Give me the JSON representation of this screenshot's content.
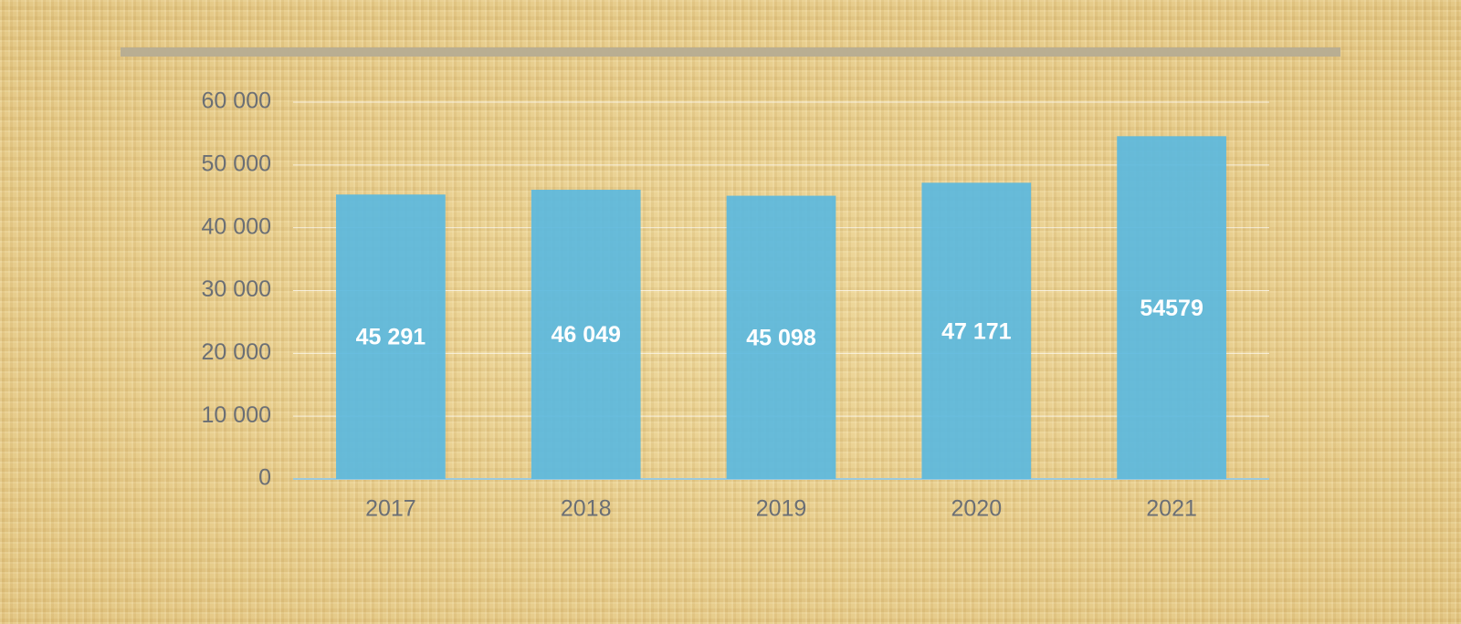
{
  "chart_data": {
    "type": "bar",
    "categories": [
      "2017",
      "2018",
      "2019",
      "2020",
      "2021"
    ],
    "values": [
      45291,
      46049,
      45098,
      47171,
      54579
    ],
    "value_labels": [
      "45 291",
      "46 049",
      "45 098",
      "47 171",
      "54579"
    ],
    "color": "#5bb9de",
    "ylim": [
      0,
      60000
    ],
    "yticks": [
      0,
      {
        "value": 10000,
        "label": "10 000"
      },
      {
        "value": 20000,
        "label": "20 000"
      },
      {
        "value": 30000,
        "label": "30 000"
      },
      {
        "value": 40000,
        "label": "40 000"
      },
      {
        "value": 50000,
        "label": "50 000"
      },
      {
        "value": 60000,
        "label": "60 000"
      }
    ],
    "grid": true
  }
}
